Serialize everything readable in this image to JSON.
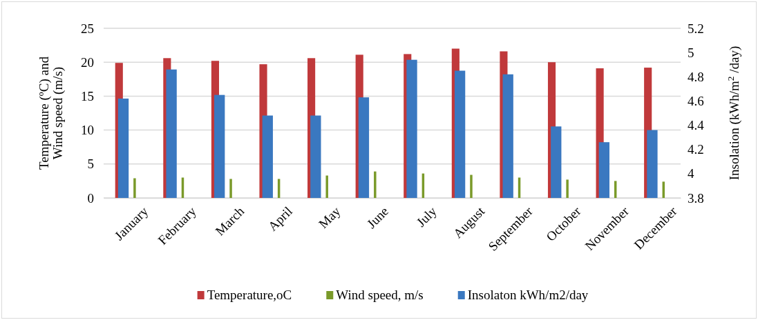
{
  "chart_data": {
    "type": "bar",
    "categories": [
      "January",
      "February",
      "March",
      "April",
      "May",
      "June",
      "July",
      "August",
      "September",
      "October",
      "November",
      "December"
    ],
    "ylabel": "Temperature (ºC) and Wind speed (m/s)",
    "y2label": "Insolation (kWh/m$^{2}$ /day)",
    "ylim": [
      0,
      25
    ],
    "yticks": [
      0,
      5,
      10,
      15,
      20,
      25
    ],
    "y2lim": [
      3.8,
      5.2
    ],
    "y2ticks": [
      3.8,
      4,
      4.2,
      4.4,
      4.6,
      4.8,
      5,
      5.2
    ],
    "grid": "y",
    "legend": "bottom",
    "series": [
      {
        "name": "Temperature,oC",
        "color": "#c0393b",
        "values": [
          19.9,
          20.6,
          20.2,
          19.7,
          20.6,
          21.1,
          21.2,
          22.0,
          21.6,
          20.0,
          19.1,
          19.2
        ]
      },
      {
        "name": "Wind speed, m/s",
        "color": "#7a9a2a",
        "values": [
          2.9,
          3.0,
          2.8,
          2.8,
          3.3,
          3.9,
          3.6,
          3.4,
          3.0,
          2.7,
          2.5,
          2.4
        ]
      },
      {
        "name": "Insolaton kWh/m2/day",
        "color": "#3a78c0",
        "axis": "y2",
        "values": [
          4.62,
          4.86,
          4.65,
          4.48,
          4.48,
          4.63,
          4.94,
          4.85,
          4.82,
          4.39,
          4.26,
          4.36
        ]
      }
    ]
  }
}
